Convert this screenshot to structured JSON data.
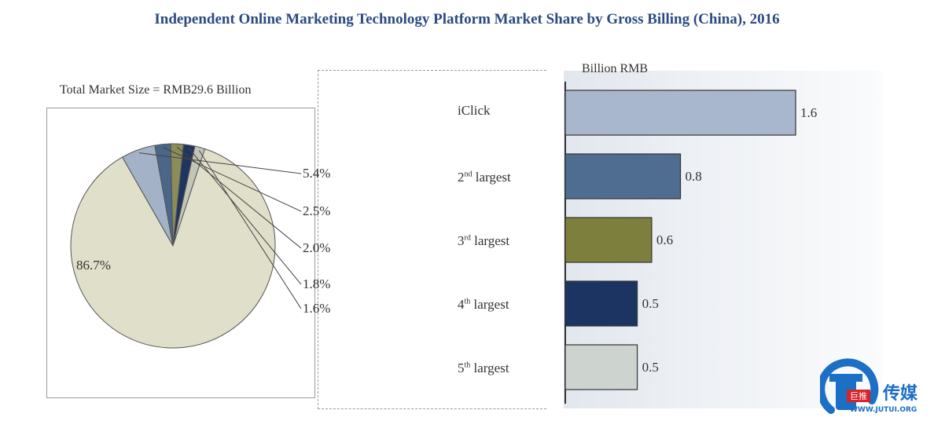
{
  "chart_data": [
    {
      "type": "pie",
      "subtitle": "Total Market Size = RMB29.6 Billion",
      "slices": [
        {
          "label": "86.7%",
          "value": 86.7,
          "color": "#e0dfc9"
        },
        {
          "label": "5.4%",
          "value": 5.4,
          "color": "#a3b2c6"
        },
        {
          "label": "2.5%",
          "value": 2.5,
          "color": "#4a6689"
        },
        {
          "label": "2.0%",
          "value": 2.0,
          "color": "#8a8c5a"
        },
        {
          "label": "1.8%",
          "value": 1.8,
          "color": "#1f3560"
        },
        {
          "label": "1.6%",
          "value": 1.6,
          "color": "#c3c6b6"
        }
      ]
    },
    {
      "type": "bar",
      "orientation": "horizontal",
      "title": "Independent Online Marketing Technology Platform Market Share by Gross Billing (China), 2016",
      "unit": "Billion RMB",
      "categories": [
        {
          "rank": "iClick",
          "suffix": "",
          "tail": ""
        },
        {
          "rank": "2",
          "suffix": "nd",
          "tail": " largest"
        },
        {
          "rank": "3",
          "suffix": "rd",
          "tail": " largest"
        },
        {
          "rank": "4",
          "suffix": "th",
          "tail": " largest"
        },
        {
          "rank": "5",
          "suffix": "th",
          "tail": " largest"
        }
      ],
      "values": [
        1.6,
        0.8,
        0.6,
        0.5,
        0.5
      ],
      "value_labels": [
        "1.6",
        "0.8",
        "0.6",
        "0.5",
        "0.5"
      ],
      "colors": [
        "#a8b7cd",
        "#4f6d90",
        "#7d7f3c",
        "#1c3461",
        "#cdd3cf"
      ],
      "xlim": [
        0,
        1.6
      ]
    }
  ],
  "logo": {
    "brand_cn": "传媒",
    "badge_cn": "巨推",
    "url": "WWW.JUTUI.ORG"
  }
}
